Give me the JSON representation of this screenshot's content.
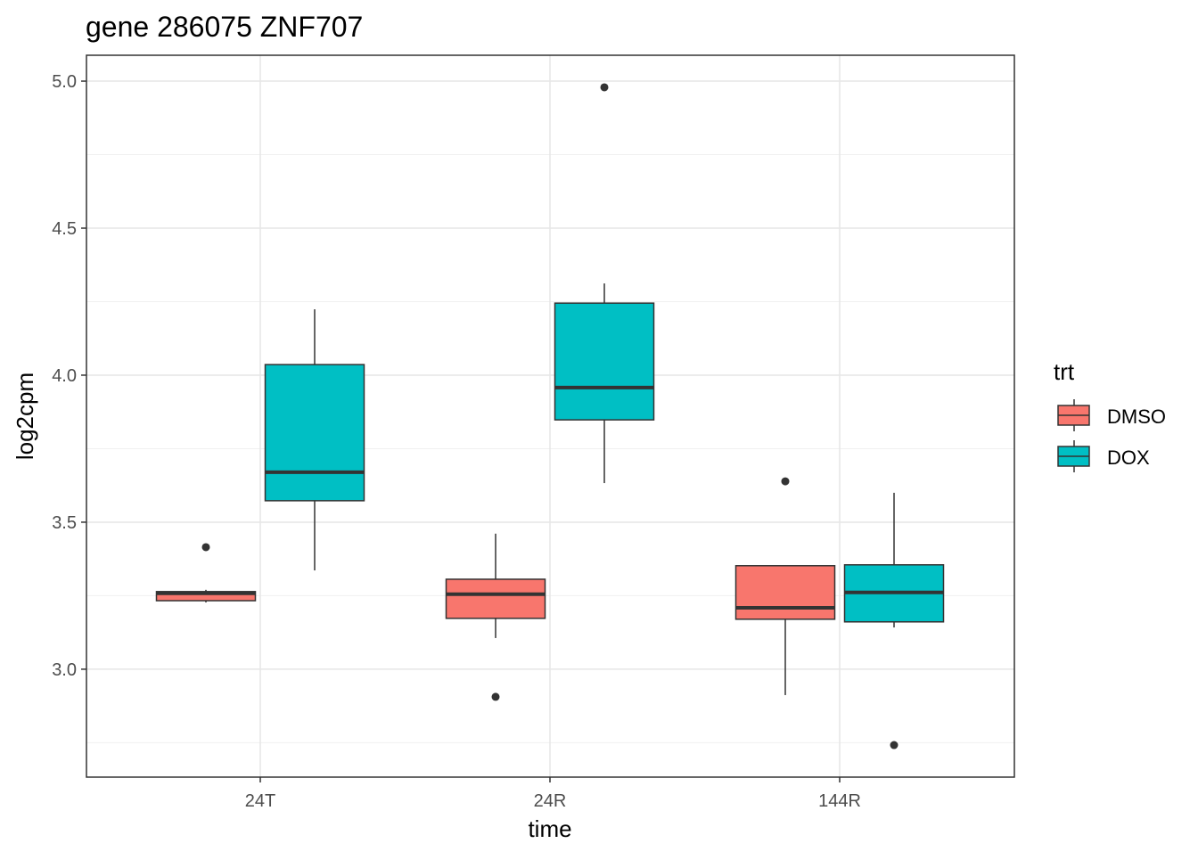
{
  "chart_data": {
    "type": "boxplot",
    "title": "gene 286075 ZNF707",
    "xlabel": "time",
    "ylabel": "log2cpm",
    "categories": [
      "24T",
      "24R",
      "144R"
    ],
    "ylim": [
      2.633,
      5.088
    ],
    "yticks": [
      3.0,
      3.5,
      4.0,
      4.5,
      5.0
    ],
    "ytick_labels": [
      "3.0",
      "3.5",
      "4.0",
      "4.5",
      "5.0"
    ],
    "grid": true,
    "legend": {
      "title": "trt",
      "placement": "right"
    },
    "series": [
      {
        "name": "DMSO",
        "color": "#F8766D",
        "boxes": [
          {
            "category": "24T",
            "whisker_low": 3.227,
            "q1": 3.233,
            "median": 3.258,
            "q3": 3.264,
            "whisker_high": 3.27,
            "outliers": [
              3.415
            ]
          },
          {
            "category": "24R",
            "whisker_low": 3.106,
            "q1": 3.173,
            "median": 3.255,
            "q3": 3.306,
            "whisker_high": 3.461,
            "outliers": [
              2.906
            ]
          },
          {
            "category": "144R",
            "whisker_low": 2.912,
            "q1": 3.17,
            "median": 3.209,
            "q3": 3.352,
            "whisker_high": 3.352,
            "outliers": [
              3.639
            ]
          }
        ]
      },
      {
        "name": "DOX",
        "color": "#00BFC4",
        "boxes": [
          {
            "category": "24T",
            "whisker_low": 3.336,
            "q1": 3.573,
            "median": 3.67,
            "q3": 4.036,
            "whisker_high": 4.224,
            "outliers": []
          },
          {
            "category": "24R",
            "whisker_low": 3.633,
            "q1": 3.848,
            "median": 3.958,
            "q3": 4.245,
            "whisker_high": 4.312,
            "outliers": [
              4.979
            ]
          },
          {
            "category": "144R",
            "whisker_low": 3.142,
            "q1": 3.161,
            "median": 3.261,
            "q3": 3.355,
            "whisker_high": 3.6,
            "outliers": [
              2.742
            ]
          }
        ]
      }
    ]
  }
}
